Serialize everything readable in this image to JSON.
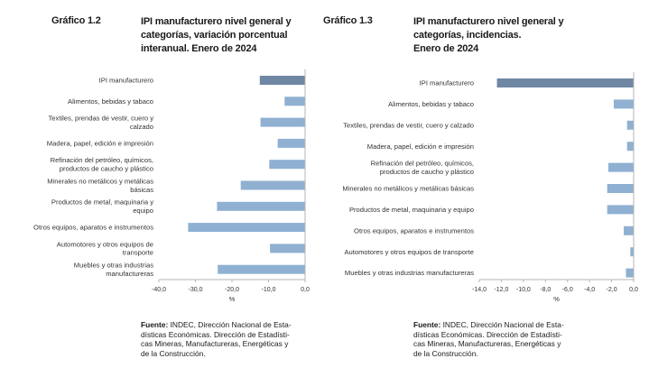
{
  "charts": [
    {
      "number": "Gráfico 1.2",
      "title_lines": [
        "IPI manufacturero nivel general y",
        "categorías, variación porcentual",
        "interanual. Enero de 2024"
      ],
      "source_label": "Fuente:",
      "source_lines": [
        " INDEC, Dirección Nacional de Esta-",
        "dísticas Económicas. Dirección de Estadísti-",
        "cas Mineras, Manufactureras, Energéticas y",
        "de la Construcción."
      ]
    },
    {
      "number": "Gráfico 1.3",
      "title_lines": [
        "IPI manufacturero nivel general y",
        "categorías, incidencias.",
        "Enero de 2024"
      ],
      "source_label": "Fuente:",
      "source_lines": [
        " INDEC, Dirección Nacional de Esta-",
        "dísticas Económicas. Dirección de Estadísti-",
        "cas Mineras, Manufactureras, Energéticas y",
        "de la Construcción."
      ]
    }
  ],
  "chart_data": [
    {
      "type": "bar",
      "orientation": "horizontal",
      "title": "IPI manufacturero nivel general y categorías, variación porcentual interanual. Enero de 2024",
      "categories": [
        [
          "IPI manufacturero"
        ],
        [
          "Alimentos, bebidas y tabaco"
        ],
        [
          "Textiles, prendas de vestir, cuero y",
          "calzado"
        ],
        [
          "Madera, papel, edición e impresión"
        ],
        [
          "Refinación del petróleo, químicos,",
          "productos de caucho y plástico"
        ],
        [
          "Minerales no metálicos y metálicas",
          "básicas"
        ],
        [
          "Productos de metal, maquinaria y",
          "equipo"
        ],
        [
          "Otros equipos, aparatos e instrumentos"
        ],
        [
          "Automotores y otros equipos de",
          "transporte"
        ],
        [
          "Muebles y otras industrias",
          "manufactureras"
        ]
      ],
      "values": [
        -12.4,
        -5.6,
        -12.2,
        -7.5,
        -9.8,
        -17.6,
        -24.1,
        -32.0,
        -9.6,
        -23.9
      ],
      "highlight_index": 0,
      "xlim": [
        -40,
        0
      ],
      "xticks": [
        "-40,0",
        "-30,0",
        "-20,0",
        "-10,0",
        "0,0"
      ],
      "xtick_values": [
        -40,
        -30,
        -20,
        -10,
        0
      ],
      "xlabel": "%",
      "colors": {
        "highlight": "#6f87a3",
        "bar": "#8fb0d1",
        "axis": "#b5b5b5"
      }
    },
    {
      "type": "bar",
      "orientation": "horizontal",
      "title": "IPI manufacturero nivel general y categorías, incidencias. Enero de 2024",
      "categories": [
        [
          "IPI manufacturero"
        ],
        [
          "Alimentos, bebidas y tabaco"
        ],
        [
          "Textiles, prendas de vestir, cuero y calzado"
        ],
        [
          "Madera, papel, edición e impresión"
        ],
        [
          "Refinación del petróleo, químicos,",
          "productos de caucho y plástico"
        ],
        [
          "Minerales no metálicos y metálicas básicas"
        ],
        [
          "Productos de metal, maquinaria y equipo"
        ],
        [
          "Otros equipos, aparatos e instrumentos"
        ],
        [
          "Automotores y otros equipos de transporte"
        ],
        [
          "Muebles y otras industrias manufactureras"
        ]
      ],
      "values": [
        -12.4,
        -1.8,
        -0.6,
        -0.6,
        -2.3,
        -2.4,
        -2.4,
        -0.9,
        -0.3,
        -0.7
      ],
      "highlight_index": 0,
      "xlim": [
        -14,
        0
      ],
      "xticks": [
        "-14,0",
        "-12,0",
        "-10,0",
        "-8,0",
        "-6,0",
        "-4,0",
        "-2,0",
        "0,0"
      ],
      "xtick_values": [
        -14,
        -12,
        -10,
        -8,
        -6,
        -4,
        -2,
        0
      ],
      "xlabel": "%",
      "colors": {
        "highlight": "#6f87a3",
        "bar": "#8fb0d1",
        "axis": "#b5b5b5"
      }
    }
  ]
}
